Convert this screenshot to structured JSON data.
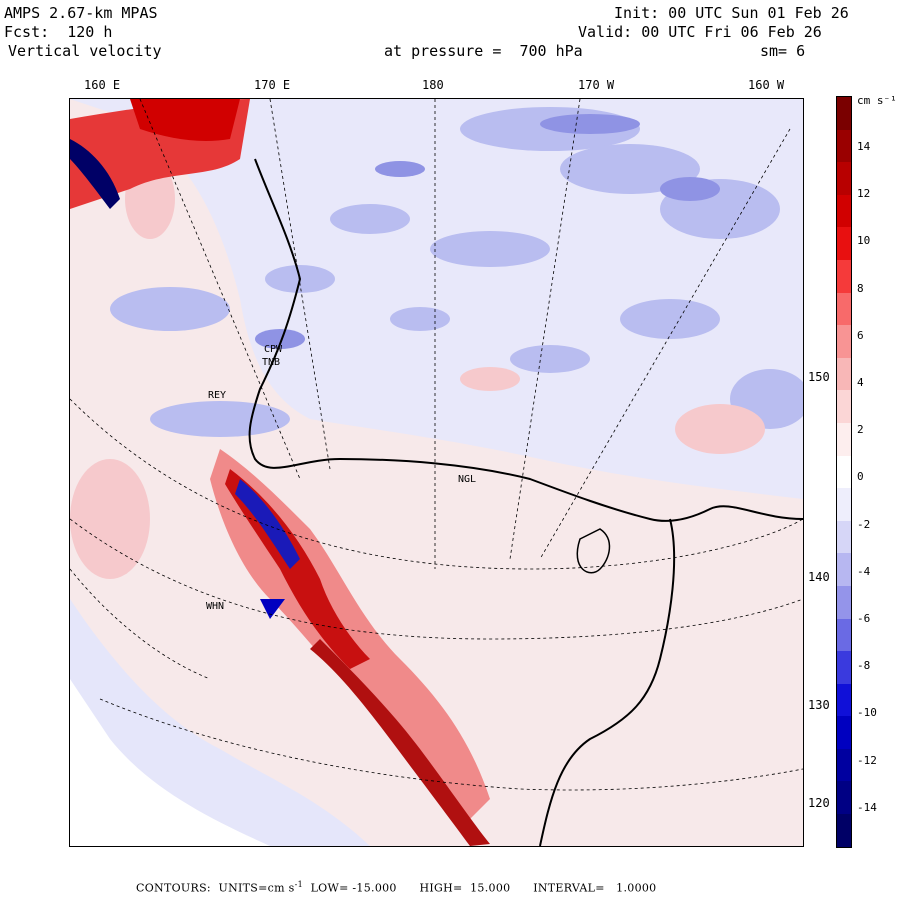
{
  "header": {
    "model": "AMPS 2.67-km MPAS",
    "forecast": "Fcst:  120 h",
    "variable": "Vertical velocity",
    "init": "Init: 00 UTC Sun 01 Feb 26",
    "valid": "Valid: 00 UTC Fri 06 Feb 26",
    "pressure": "at pressure =  700 hPa",
    "smoothing": "sm= 6"
  },
  "longitude_labels": [
    "160 E",
    "170 E",
    "180",
    "170 W",
    "160 W"
  ],
  "latitude_labels": [
    "150 W",
    "140 W",
    "130 W",
    "120 W"
  ],
  "stations": [
    "CPW",
    "TNB",
    "REY",
    "NGL",
    "WHN"
  ],
  "colorbar": {
    "units_label": "cm s⁻¹",
    "tick_labels": [
      "14",
      "12",
      "10",
      "8",
      "6",
      "4",
      "2",
      "0",
      "-2",
      "-4",
      "-6",
      "-8",
      "-10",
      "-12",
      "-14"
    ],
    "colors": [
      "#7a0000",
      "#9a0000",
      "#b80000",
      "#d10000",
      "#e81010",
      "#f53a3a",
      "#f86a6a",
      "#f89494",
      "#f8b7b7",
      "#fbd6d6",
      "#fdeeee",
      "#ffffff",
      "#eeeefc",
      "#d6d6f7",
      "#b7b7f1",
      "#9494ea",
      "#6a6ae4",
      "#3a3ade",
      "#1010d8",
      "#0000c0",
      "#0000a0",
      "#000084",
      "#000066"
    ]
  },
  "footer": {
    "prefix": "CONTOURS:  UNITS=cm s",
    "exponent": "-1",
    "rest": "  LOW= -15.000      HIGH=  15.000      INTERVAL=   1.0000"
  }
}
